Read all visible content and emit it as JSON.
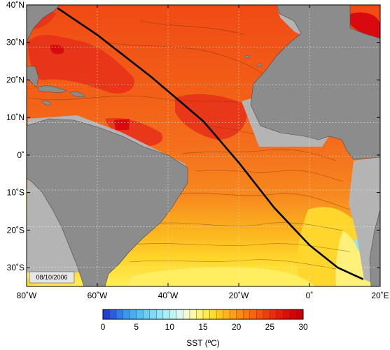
{
  "map": {
    "lon_range": [
      -80,
      20
    ],
    "lat_range": [
      -35,
      40
    ],
    "x_ticks": [
      {
        "value": -80,
        "label": "80˚W"
      },
      {
        "value": -60,
        "label": "60˚W"
      },
      {
        "value": -40,
        "label": "40˚W"
      },
      {
        "value": -20,
        "label": "20˚W"
      },
      {
        "value": 0,
        "label": "0˚"
      },
      {
        "value": 20,
        "label": "20˚E"
      }
    ],
    "y_ticks": [
      {
        "value": 40,
        "label": "40˚N"
      },
      {
        "value": 30,
        "label": "30˚N"
      },
      {
        "value": 20,
        "label": "20˚N"
      },
      {
        "value": 10,
        "label": "10˚N"
      },
      {
        "value": 0,
        "label": "0˚"
      },
      {
        "value": -10,
        "label": "10˚S"
      },
      {
        "value": -20,
        "label": "20˚S"
      },
      {
        "value": -30,
        "label": "30˚S"
      }
    ],
    "date_label": "08/10/2006",
    "cruise_track": [
      [
        -71,
        39
      ],
      [
        -60,
        32
      ],
      [
        -45,
        21
      ],
      [
        -30,
        9
      ],
      [
        -20,
        -2
      ],
      [
        -10,
        -14
      ],
      [
        0,
        -24
      ],
      [
        8,
        -30
      ],
      [
        15,
        -33
      ]
    ],
    "colors": {
      "land": "#8c8c8c",
      "shelf": "#b4b4b4",
      "track": "#000000"
    }
  },
  "colorbar": {
    "title": "SST (ºC)",
    "min": 0,
    "max": 30,
    "tick_labels": [
      "0",
      "5",
      "10",
      "15",
      "20",
      "25",
      "30"
    ],
    "tick_values": [
      0,
      5,
      10,
      15,
      20,
      25,
      30
    ],
    "colors": [
      "#1f3fd6",
      "#2a5ee0",
      "#2f7de8",
      "#3a98ee",
      "#46aff2",
      "#55c0f5",
      "#68cff7",
      "#7ddbf8",
      "#93e5f8",
      "#aaedf6",
      "#c2f3f3",
      "#dcf8f0",
      "#f3fbd6",
      "#fdfba8",
      "#fff57a",
      "#ffeb4a",
      "#ffdc2a",
      "#ffc81a",
      "#ffb415",
      "#ffa012",
      "#ff8c10",
      "#ff780e",
      "#fd640c",
      "#f9510b",
      "#f43e0a",
      "#ee2c09",
      "#e71c08",
      "#df0f07",
      "#d60406",
      "#cc0000"
    ]
  }
}
